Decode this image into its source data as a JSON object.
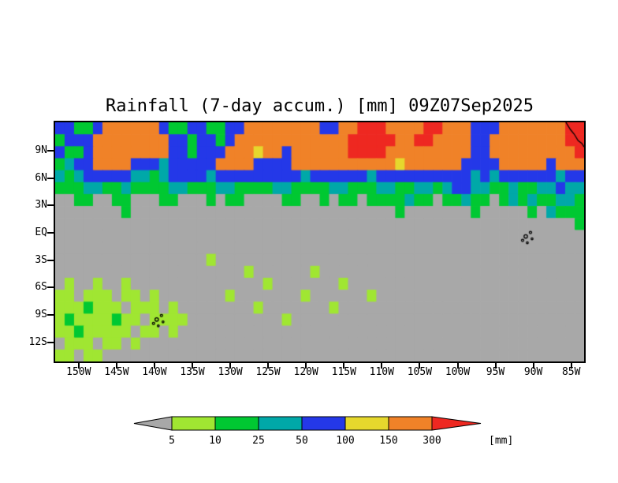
{
  "title": "Rainfall (7-day accum.) [mm] 09Z07Sep2025",
  "axes": {
    "lat_labels": [
      "9N",
      "6N",
      "3N",
      "EQ",
      "3S",
      "6S",
      "9S",
      "12S"
    ],
    "lon_labels": [
      "150W",
      "145W",
      "140W",
      "135W",
      "130W",
      "125W",
      "120W",
      "115W",
      "110W",
      "105W",
      "100W",
      "95W",
      "90W",
      "85W"
    ]
  },
  "colorbar": {
    "tick_labels": [
      "5",
      "10",
      "25",
      "50",
      "100",
      "150",
      "300"
    ],
    "unit_label": "[mm]"
  },
  "chart_data": {
    "type": "heatmap",
    "title": "Rainfall (7-day accum.) [mm] 09Z07Sep2025",
    "variable": "7-day accumulated rainfall",
    "units": "mm",
    "valid_time": "09Z07Sep2025",
    "lon_range_deg_west": [
      153.1,
      83.3
    ],
    "lat_range_deg": [
      12.1,
      -14.1
    ],
    "levels_mm": [
      5,
      10,
      25,
      50,
      100,
      150,
      300
    ],
    "palette": [
      "#a8a8a8",
      "#a0e632",
      "#00c832",
      "#00a8a8",
      "#2438e8",
      "#e6d82d",
      "#f08228",
      "#ee2821"
    ],
    "palette_meaning": [
      "<5",
      "5-10",
      "10-25",
      "25-50",
      "50-100",
      "100-150",
      "150-300",
      ">300"
    ],
    "grid_encoding": "Each string is one latitude row (row 0 = northern edge, 12.1N; last row = 14.1S). Each digit is one cell (1.25 deg lon) indexing palette/palette_meaning.",
    "grid": [
      "44224666666422442244666666664466777666677666444666666677",
      "24446666666644244246666666666667777766776666446666666677",
      "42246666666644244466656646666667777666666666446666666667",
      "23446666444344444666644446666666666656666664444666664666",
      "32344444332344443444444444344444434444444444343444444344",
      "22233223222233222332222332222332223322332344332232233433",
      "00220022000220002022000022002022022223220223220232322332",
      "00000002000000000000000000000000000020000000200000203222",
      "00000000000000000000000000000000000000000000000000000002",
      "00000000000000000000000000000000000000000000000000000000",
      "00000000000000000000000000000000000000000000000000000000",
      "00000000000000001000000000000000000000000000000000000000",
      "00000000000000000000100000010000000000000000000000000000",
      "01001001000000000000001000000010000000000000000000000000",
      "11011101101000000010000000100000010000000000000000000000",
      "11121110111010000000010000000100000000000000000000000000",
      "12111121101111000000000010000000000000000000000000000000",
      "11211111011010000000000000000000000000000000000000000000",
      "01110110100000000000000000000000000000000000000000000000",
      "11011000000000000000000000000000000000000000000000000000"
    ],
    "features": [
      {
        "name": "central-america-coastline",
        "points": [
          [
            85.7,
            12.1
          ],
          [
            85.1,
            11.3
          ],
          [
            84.6,
            10.8
          ],
          [
            84.1,
            10.1
          ],
          [
            83.6,
            9.8
          ],
          [
            83.3,
            9.4
          ]
        ]
      },
      {
        "name": "galapagos-islands",
        "lon_w": 91.0,
        "lat": -0.4
      },
      {
        "name": "marquesas-islands",
        "lon_w": 139.7,
        "lat": -9.5
      }
    ]
  }
}
